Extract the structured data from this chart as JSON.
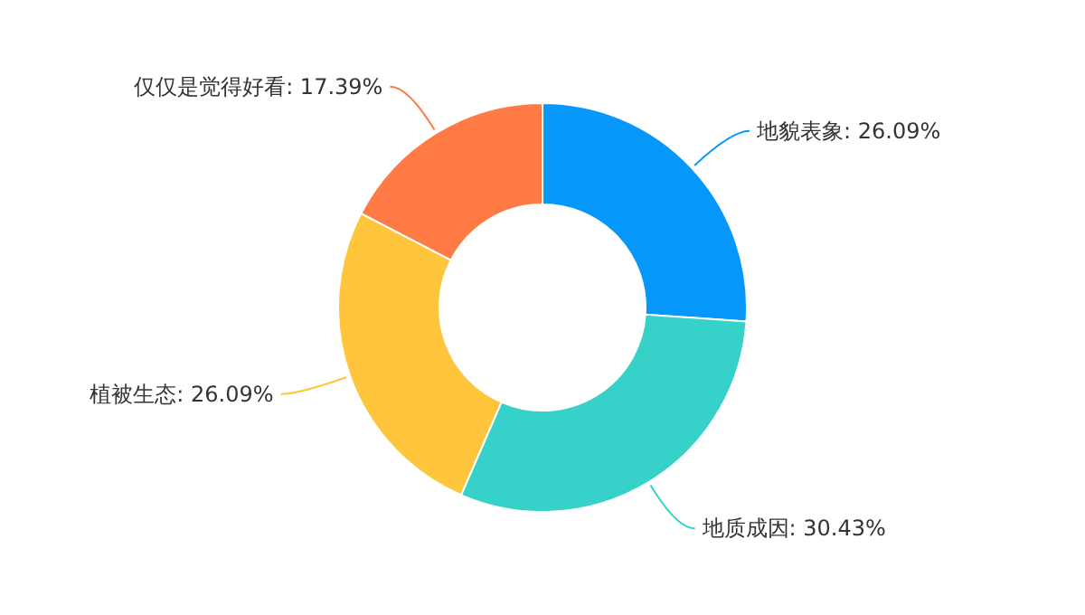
{
  "chart_data": {
    "type": "donut",
    "categories": [
      "地貌表象",
      "地质成因",
      "植被生态",
      "仅仅是觉得好看"
    ],
    "values": [
      26.09,
      30.43,
      26.09,
      17.39
    ],
    "value_labels": [
      "26.09%",
      "30.43%",
      "26.09%",
      "17.39%"
    ],
    "colors": [
      "#0598fa",
      "#36d1c9",
      "#ffc53d",
      "#ff7a45"
    ],
    "legend": false
  }
}
